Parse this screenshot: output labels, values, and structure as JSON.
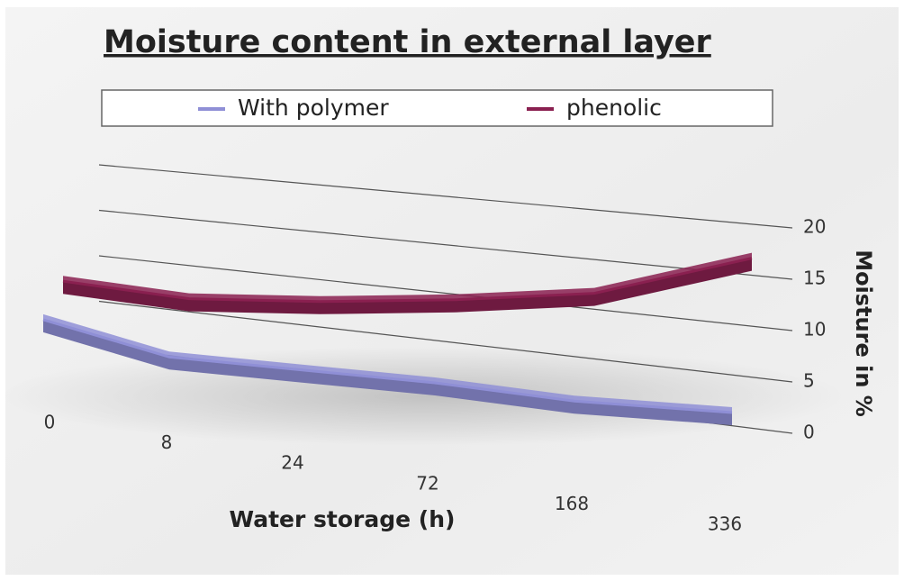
{
  "chart_data": {
    "type": "line",
    "title": "Moisture content in external layer",
    "x_label": "Water storage (h)",
    "y_label": "Moisture in %",
    "categories": [
      "0",
      "8",
      "24",
      "72",
      "168",
      "336"
    ],
    "series": [
      {
        "name": "With polymer",
        "color": "#8f8fd6",
        "values": [
          10,
          7,
          6.5,
          6,
          5,
          4.8
        ]
      },
      {
        "name": "phenolic",
        "color": "#8a2050",
        "values": [
          14,
          13,
          13.5,
          14.5,
          16,
          20.5
        ]
      }
    ],
    "ylim": [
      0,
      20
    ],
    "yticks": [
      0,
      5,
      10,
      15,
      20
    ],
    "grid": true,
    "legend": "top"
  }
}
